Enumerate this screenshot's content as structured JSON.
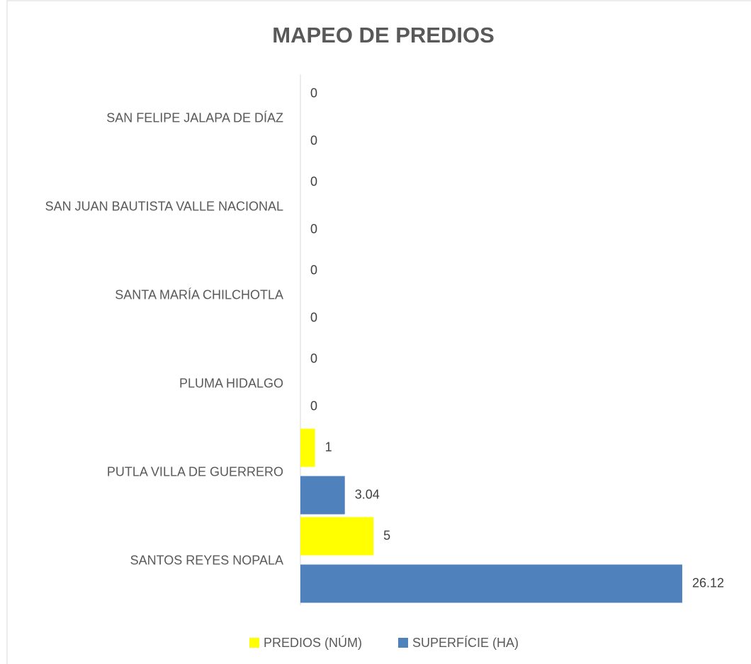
{
  "chart_data": {
    "type": "barh",
    "title": "MAPEO DE PREDIOS",
    "categories": [
      "SAN FELIPE JALAPA DE DÍAZ",
      "SAN JUAN BAUTISTA VALLE NACIONAL",
      "SANTA MARÍA CHILCHOTLA",
      "PLUMA HIDALGO",
      "PUTLA VILLA DE GUERRERO",
      "SANTOS REYES NOPALA"
    ],
    "series": [
      {
        "name": "PREDIOS (NÚM)",
        "color": "#ffff00",
        "values": [
          0,
          0,
          0,
          0,
          1,
          5
        ]
      },
      {
        "name": "SUPERFÍCIE (HA)",
        "color": "#4f81bd",
        "values": [
          0,
          0,
          0,
          0,
          3.04,
          26.12
        ]
      }
    ],
    "xlim": [
      0,
      30
    ],
    "legend": "bottom"
  }
}
